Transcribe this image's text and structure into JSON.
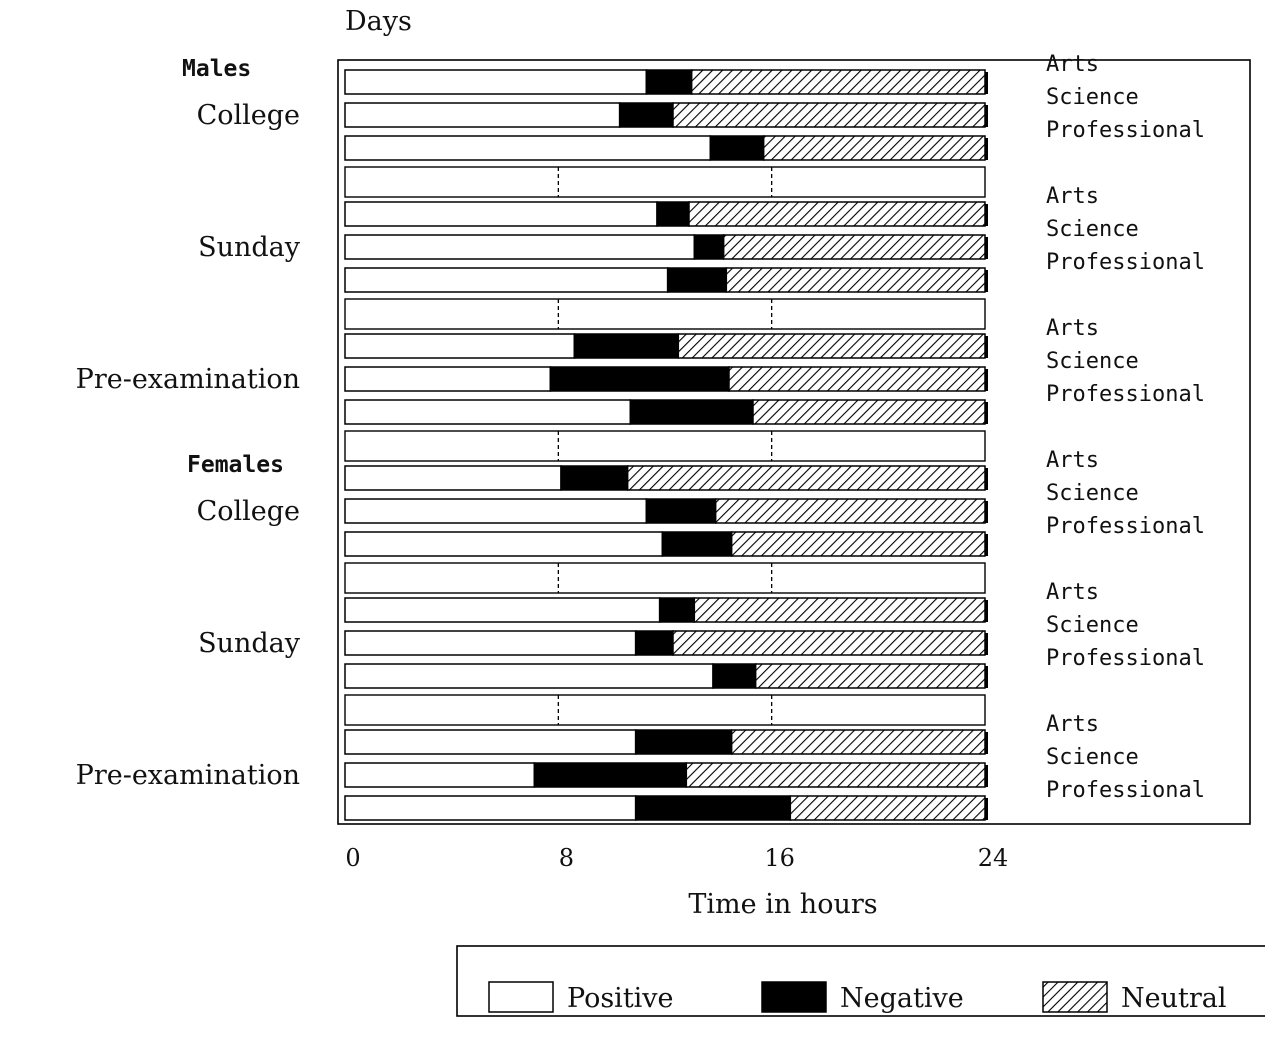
{
  "chart_data": {
    "type": "bar",
    "orientation": "horizontal",
    "stacked": true,
    "top_label": "Days",
    "xlabel": "Time in hours",
    "xlim": [
      0,
      24
    ],
    "xticks": [
      "0",
      "8",
      "16",
      "24"
    ],
    "legend_position": "bottom-right",
    "series_meta": [
      {
        "name": "Positive",
        "fill": "#ffffff"
      },
      {
        "name": "Negative",
        "fill": "#000000"
      },
      {
        "name": "Neutral",
        "fill": "hatch"
      }
    ],
    "groups": [
      {
        "gender": "Males",
        "condition": "College",
        "rows": [
          {
            "faculty": "Arts",
            "positive": 11.3,
            "negative": 1.7,
            "neutral": 11.0
          },
          {
            "faculty": "Science",
            "positive": 10.3,
            "negative": 2.0,
            "neutral": 11.7
          },
          {
            "faculty": "Professional",
            "positive": 13.7,
            "negative": 2.0,
            "neutral": 8.3
          }
        ]
      },
      {
        "gender": "",
        "condition": "Sunday",
        "rows": [
          {
            "faculty": "Arts",
            "positive": 11.7,
            "negative": 1.2,
            "neutral": 11.1
          },
          {
            "faculty": "Science",
            "positive": 13.1,
            "negative": 1.1,
            "neutral": 9.8
          },
          {
            "faculty": "Professional",
            "positive": 12.1,
            "negative": 2.2,
            "neutral": 9.7
          }
        ]
      },
      {
        "gender": "",
        "condition": "Pre-examination",
        "rows": [
          {
            "faculty": "Arts",
            "positive": 8.6,
            "negative": 3.9,
            "neutral": 11.5
          },
          {
            "faculty": "Science",
            "positive": 7.7,
            "negative": 6.7,
            "neutral": 9.6
          },
          {
            "faculty": "Professional",
            "positive": 10.7,
            "negative": 4.6,
            "neutral": 8.7
          }
        ]
      },
      {
        "gender": "Females",
        "condition": "College",
        "rows": [
          {
            "faculty": "Arts",
            "positive": 8.1,
            "negative": 2.5,
            "neutral": 13.4
          },
          {
            "faculty": "Science",
            "positive": 11.3,
            "negative": 2.6,
            "neutral": 10.1
          },
          {
            "faculty": "Professional",
            "positive": 11.9,
            "negative": 2.6,
            "neutral": 9.5
          }
        ]
      },
      {
        "gender": "",
        "condition": "Sunday",
        "rows": [
          {
            "faculty": "Arts",
            "positive": 11.8,
            "negative": 1.3,
            "neutral": 10.9
          },
          {
            "faculty": "Science",
            "positive": 10.9,
            "negative": 1.4,
            "neutral": 11.7
          },
          {
            "faculty": "Professional",
            "positive": 13.8,
            "negative": 1.6,
            "neutral": 8.6
          }
        ]
      },
      {
        "gender": "",
        "condition": "Pre-examination",
        "rows": [
          {
            "faculty": "Arts",
            "positive": 10.9,
            "negative": 3.6,
            "neutral": 9.5
          },
          {
            "faculty": "Science",
            "positive": 7.1,
            "negative": 5.7,
            "neutral": 11.2
          },
          {
            "faculty": "Professional",
            "positive": 10.9,
            "negative": 5.8,
            "neutral": 7.3
          }
        ]
      }
    ]
  }
}
